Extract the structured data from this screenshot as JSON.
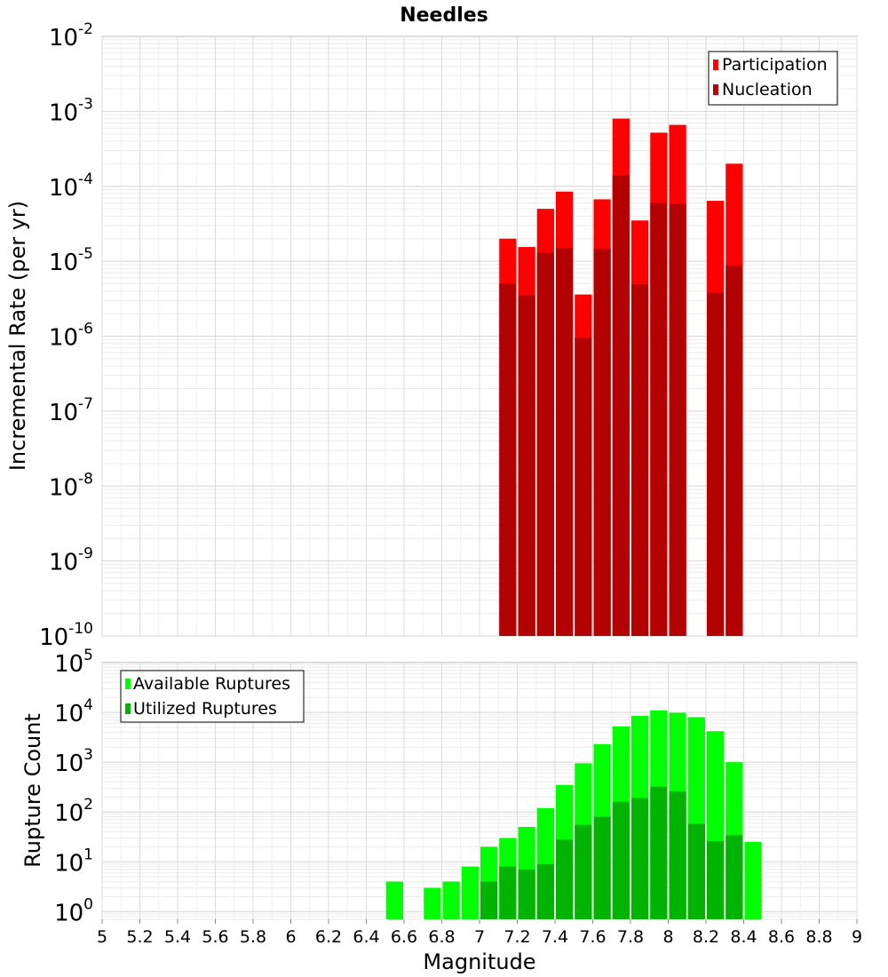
{
  "chart_data": [
    {
      "type": "bar",
      "title": "Needles",
      "xlabel": "",
      "ylabel": "Incremental Rate (per yr)",
      "yscale": "log",
      "xlim": [
        5,
        9
      ],
      "ylim": [
        1e-10,
        0.01
      ],
      "yticks": [
        {
          "base": "10",
          "exp": "-10"
        },
        {
          "base": "10",
          "exp": "-9"
        },
        {
          "base": "10",
          "exp": "-8"
        },
        {
          "base": "10",
          "exp": "-7"
        },
        {
          "base": "10",
          "exp": "-6"
        },
        {
          "base": "10",
          "exp": "-5"
        },
        {
          "base": "10",
          "exp": "-4"
        },
        {
          "base": "10",
          "exp": "-3"
        },
        {
          "base": "10",
          "exp": "-2"
        }
      ],
      "grid": true,
      "legend": "top-right",
      "bar_width": 0.1,
      "series": [
        {
          "name": "Participation",
          "color": "#ff0000",
          "x": [
            7.15,
            7.25,
            7.35,
            7.45,
            7.55,
            7.65,
            7.75,
            7.85,
            7.95,
            8.05,
            8.25,
            8.35
          ],
          "values": [
            2e-05,
            1.55e-05,
            5e-05,
            8.5e-05,
            3.6e-06,
            6.7e-05,
            0.0008,
            3.5e-05,
            0.00052,
            0.00066,
            6.4e-05,
            0.0002
          ]
        },
        {
          "name": "Nucleation",
          "color": "#b30000",
          "x": [
            7.15,
            7.25,
            7.35,
            7.45,
            7.55,
            7.65,
            7.75,
            7.85,
            7.95,
            8.05,
            8.25,
            8.35
          ],
          "values": [
            5e-06,
            3.5e-06,
            1.3e-05,
            1.5e-05,
            9.5e-07,
            1.45e-05,
            0.00014,
            4.9e-06,
            6e-05,
            5.8e-05,
            3.8e-06,
            8.8e-06
          ]
        }
      ]
    },
    {
      "type": "bar",
      "title": "",
      "xlabel": "Magnitude",
      "ylabel": "Rupture Count",
      "yscale": "log",
      "xlim": [
        5,
        9
      ],
      "ylim": [
        0.7,
        100000
      ],
      "xticks": [
        "5",
        "5.2",
        "5.4",
        "5.6",
        "5.8",
        "6",
        "6.2",
        "6.4",
        "6.6",
        "6.8",
        "7",
        "7.2",
        "7.4",
        "7.6",
        "7.8",
        "8",
        "8.2",
        "8.4",
        "8.6",
        "8.8",
        "9"
      ],
      "yticks": [
        {
          "base": "10",
          "exp": "0"
        },
        {
          "base": "10",
          "exp": "1"
        },
        {
          "base": "10",
          "exp": "2"
        },
        {
          "base": "10",
          "exp": "3"
        },
        {
          "base": "10",
          "exp": "4"
        },
        {
          "base": "10",
          "exp": "5"
        }
      ],
      "grid": true,
      "legend": "top-left",
      "bar_width": 0.1,
      "series": [
        {
          "name": "Available Ruptures",
          "color": "#00ff00",
          "x": [
            6.55,
            6.75,
            6.85,
            6.95,
            7.05,
            7.15,
            7.25,
            7.35,
            7.45,
            7.55,
            7.65,
            7.75,
            7.85,
            7.95,
            8.05,
            8.15,
            8.25,
            8.35,
            8.45
          ],
          "values": [
            4,
            3,
            4,
            8,
            20,
            30,
            50,
            120,
            350,
            950,
            2300,
            5200,
            8500,
            11000,
            9800,
            8000,
            4200,
            1000,
            25
          ]
        },
        {
          "name": "Utilized Ruptures",
          "color": "#00b300",
          "x": [
            7.05,
            7.15,
            7.25,
            7.35,
            7.45,
            7.55,
            7.65,
            7.75,
            7.85,
            7.95,
            8.05,
            8.15,
            8.25,
            8.35
          ],
          "values": [
            4,
            8,
            7,
            9,
            28,
            55,
            80,
            160,
            190,
            320,
            260,
            58,
            26,
            34
          ]
        }
      ]
    }
  ]
}
